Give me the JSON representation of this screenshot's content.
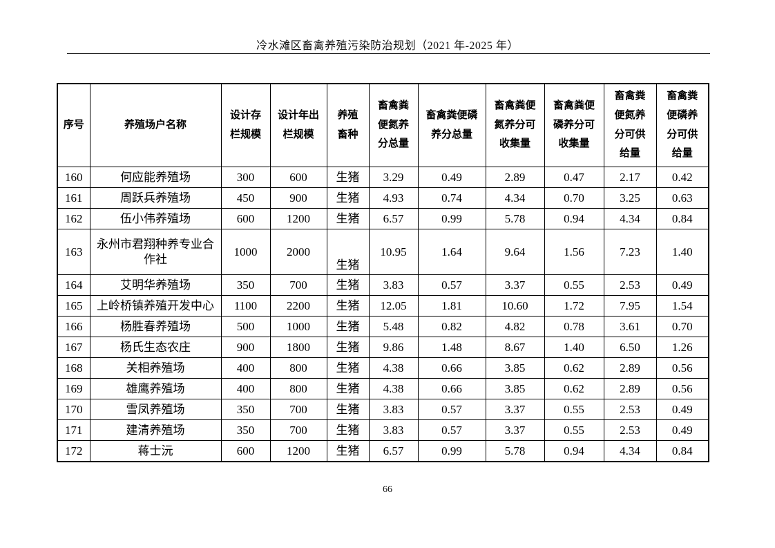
{
  "document": {
    "header_title": "冷水滩区畜禽养殖污染防治规划（2021 年-2025 年）",
    "page_number": "66"
  },
  "table": {
    "columns": [
      {
        "key": "seq",
        "label": "序号"
      },
      {
        "key": "name",
        "label": "养殖场户名称"
      },
      {
        "key": "stock",
        "label": "设计存\n栏规模"
      },
      {
        "key": "outturn",
        "label": "设计年出\n栏规模"
      },
      {
        "key": "species",
        "label": "养殖\n畜种"
      },
      {
        "key": "n_total",
        "label": "畜禽粪\n便氮养\n分总量"
      },
      {
        "key": "p_total",
        "label": "畜禽粪便磷\n养分总量"
      },
      {
        "key": "n_collect",
        "label": "畜禽粪便\n氮养分可\n收集量"
      },
      {
        "key": "p_collect",
        "label": "畜禽粪便\n磷养分可\n收集量"
      },
      {
        "key": "n_supply",
        "label": "畜禽粪\n便氮养\n分可供\n给量"
      },
      {
        "key": "p_supply",
        "label": "畜禽粪\n便磷养\n分可供\n给量"
      }
    ],
    "rows": [
      {
        "seq": "160",
        "name": "何应能养殖场",
        "stock": "300",
        "outturn": "600",
        "species": "生猪",
        "n_total": "3.29",
        "p_total": "0.49",
        "n_collect": "2.89",
        "p_collect": "0.47",
        "n_supply": "2.17",
        "p_supply": "0.42"
      },
      {
        "seq": "161",
        "name": "周跃兵养殖场",
        "stock": "450",
        "outturn": "900",
        "species": "生猪",
        "n_total": "4.93",
        "p_total": "0.74",
        "n_collect": "4.34",
        "p_collect": "0.70",
        "n_supply": "3.25",
        "p_supply": "0.63"
      },
      {
        "seq": "162",
        "name": "伍小伟养殖场",
        "stock": "600",
        "outturn": "1200",
        "species": "生猪",
        "n_total": "6.57",
        "p_total": "0.99",
        "n_collect": "5.78",
        "p_collect": "0.94",
        "n_supply": "4.34",
        "p_supply": "0.84"
      },
      {
        "seq": "163",
        "name": "永州市君翔种养专业合作社",
        "stock": "1000",
        "outturn": "2000",
        "species": "生猪",
        "n_total": "10.95",
        "p_total": "1.64",
        "n_collect": "9.64",
        "p_collect": "1.56",
        "n_supply": "7.23",
        "p_supply": "1.40",
        "tall": true,
        "species_valign": "bottom"
      },
      {
        "seq": "164",
        "name": "艾明华养殖场",
        "stock": "350",
        "outturn": "700",
        "species": "生猪",
        "n_total": "3.83",
        "p_total": "0.57",
        "n_collect": "3.37",
        "p_collect": "0.55",
        "n_supply": "2.53",
        "p_supply": "0.49"
      },
      {
        "seq": "165",
        "name": "上岭桥镇养殖开发中心",
        "stock": "1100",
        "outturn": "2200",
        "species": "生猪",
        "n_total": "12.05",
        "p_total": "1.81",
        "n_collect": "10.60",
        "p_collect": "1.72",
        "n_supply": "7.95",
        "p_supply": "1.54"
      },
      {
        "seq": "166",
        "name": "杨胜春养殖场",
        "stock": "500",
        "outturn": "1000",
        "species": "生猪",
        "n_total": "5.48",
        "p_total": "0.82",
        "n_collect": "4.82",
        "p_collect": "0.78",
        "n_supply": "3.61",
        "p_supply": "0.70"
      },
      {
        "seq": "167",
        "name": "杨氏生态农庄",
        "stock": "900",
        "outturn": "1800",
        "species": "生猪",
        "n_total": "9.86",
        "p_total": "1.48",
        "n_collect": "8.67",
        "p_collect": "1.40",
        "n_supply": "6.50",
        "p_supply": "1.26"
      },
      {
        "seq": "168",
        "name": "关相养殖场",
        "stock": "400",
        "outturn": "800",
        "species": "生猪",
        "n_total": "4.38",
        "p_total": "0.66",
        "n_collect": "3.85",
        "p_collect": "0.62",
        "n_supply": "2.89",
        "p_supply": "0.56"
      },
      {
        "seq": "169",
        "name": "雄鹰养殖场",
        "stock": "400",
        "outturn": "800",
        "species": "生猪",
        "n_total": "4.38",
        "p_total": "0.66",
        "n_collect": "3.85",
        "p_collect": "0.62",
        "n_supply": "2.89",
        "p_supply": "0.56"
      },
      {
        "seq": "170",
        "name": "雪凤养殖场",
        "stock": "350",
        "outturn": "700",
        "species": "生猪",
        "n_total": "3.83",
        "p_total": "0.57",
        "n_collect": "3.37",
        "p_collect": "0.55",
        "n_supply": "2.53",
        "p_supply": "0.49"
      },
      {
        "seq": "171",
        "name": "建清养殖场",
        "stock": "350",
        "outturn": "700",
        "species": "生猪",
        "n_total": "3.83",
        "p_total": "0.57",
        "n_collect": "3.37",
        "p_collect": "0.55",
        "n_supply": "2.53",
        "p_supply": "0.49"
      },
      {
        "seq": "172",
        "name": "蒋士沅",
        "stock": "600",
        "outturn": "1200",
        "species": "生猪",
        "n_total": "6.57",
        "p_total": "0.99",
        "n_collect": "5.78",
        "p_collect": "0.94",
        "n_supply": "4.34",
        "p_supply": "0.84"
      }
    ]
  }
}
